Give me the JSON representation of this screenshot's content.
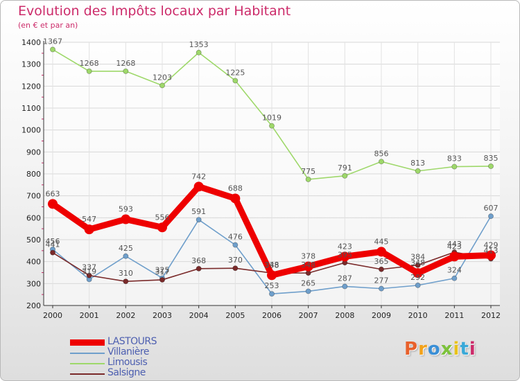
{
  "title": "Evolution des Impôts locaux par Habitant",
  "subtitle": "(en € et par an)",
  "logo": {
    "text": "Proxiti",
    "colors": [
      "#e8612c",
      "#f2a21b",
      "#3a8fd6",
      "#7cc23b",
      "#e8c21b",
      "#39a9d8",
      "#cc2b6a"
    ]
  },
  "chart_data": {
    "type": "line",
    "categories": [
      "2000",
      "2001",
      "2002",
      "2003",
      "2004",
      "2005",
      "2006",
      "2007",
      "2008",
      "2009",
      "2010",
      "2011",
      "2012"
    ],
    "ylim": [
      200,
      1400
    ],
    "yticks": [
      200,
      300,
      400,
      500,
      600,
      700,
      800,
      900,
      1000,
      1100,
      1200,
      1300,
      1400
    ],
    "grid": true,
    "legend_position": "bottom-left",
    "series": [
      {
        "name": "LASTOURS",
        "color": "#ee0000",
        "emphasis": true,
        "values": [
          663,
          547,
          593,
          556,
          742,
          688,
          338,
          378,
          423,
          445,
          348,
          423,
          429
        ]
      },
      {
        "name": "Villanière",
        "color": "#6f9fcb",
        "emphasis": false,
        "values": [
          456,
          319,
          425,
          325,
          591,
          476,
          253,
          265,
          287,
          277,
          292,
          324,
          607
        ]
      },
      {
        "name": "Limousis",
        "color": "#9ed86a",
        "emphasis": false,
        "values": [
          1367,
          1268,
          1268,
          1203,
          1353,
          1225,
          1019,
          775,
          791,
          856,
          813,
          833,
          835
        ]
      },
      {
        "name": "Salsigne",
        "color": "#7a2a2a",
        "emphasis": false,
        "values": [
          441,
          337,
          310,
          317,
          368,
          370,
          348,
          348,
          395,
          365,
          384,
          443,
          413
        ]
      }
    ]
  }
}
